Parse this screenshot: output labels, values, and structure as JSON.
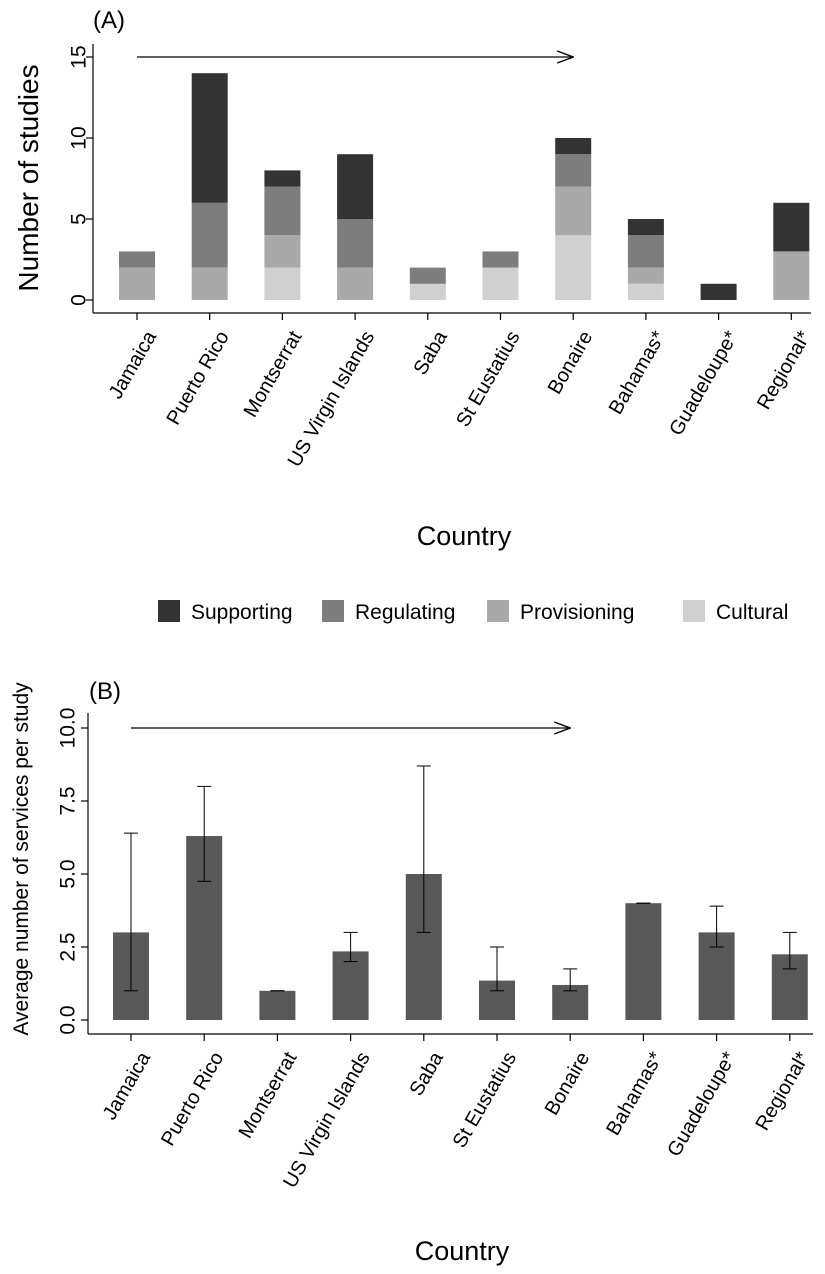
{
  "chart_data": [
    {
      "type": "bar",
      "stacked": true,
      "panel_label": "(A)",
      "xlabel": "Country",
      "ylabel": "Number of studies",
      "ylim": [
        0,
        15
      ],
      "yticks": [
        0,
        5,
        10,
        15
      ],
      "categories": [
        "Jamaica",
        "Puerto Rico",
        "Montserrat",
        "US Virgin Islands",
        "Saba",
        "St Eustatius",
        "Bonaire",
        "Bahamas*",
        "Guadeloupe*",
        "Regional*"
      ],
      "series": [
        {
          "name": "Cultural",
          "color": "#d0d0d0",
          "values": [
            0,
            0,
            2,
            0,
            1,
            2,
            4,
            1,
            0,
            0
          ]
        },
        {
          "name": "Provisioning",
          "color": "#a9a9a9",
          "values": [
            2,
            2,
            2,
            2,
            0,
            0,
            3,
            1,
            0,
            3
          ]
        },
        {
          "name": "Regulating",
          "color": "#7d7d7d",
          "values": [
            1,
            4,
            3,
            3,
            1,
            1,
            2,
            2,
            0,
            0
          ]
        },
        {
          "name": "Supporting",
          "color": "#333333",
          "values": [
            0,
            8,
            1,
            4,
            0,
            0,
            1,
            1,
            1,
            3
          ]
        }
      ],
      "arrow": {
        "from_category": "Jamaica",
        "to_category": "Bonaire",
        "y": 15
      },
      "grid": false,
      "legend_position": "bottom"
    },
    {
      "type": "bar",
      "panel_label": "(B)",
      "xlabel": "Country",
      "ylabel": "Average number of services per study",
      "ylim": [
        0,
        10.5
      ],
      "yticks": [
        "0.0",
        "2.5",
        "5.0",
        "7.5",
        "10.0"
      ],
      "categories": [
        "Jamaica",
        "Puerto Rico",
        "Montserrat",
        "US Virgin Islands",
        "Saba",
        "St Eustatius",
        "Bonaire",
        "Bahamas*",
        "Guadeloupe*",
        "Regional*"
      ],
      "bar_color": "#585858",
      "values": [
        3.0,
        6.3,
        1.0,
        2.35,
        5.0,
        1.35,
        1.2,
        4.0,
        3.0,
        2.25
      ],
      "error_low": [
        1.0,
        4.75,
        1.0,
        2.0,
        3.0,
        1.0,
        1.0,
        4.0,
        2.5,
        1.75
      ],
      "error_high": [
        6.4,
        8.0,
        1.0,
        3.0,
        8.7,
        2.5,
        1.75,
        4.0,
        3.9,
        3.0
      ],
      "arrow": {
        "from_category": "Jamaica",
        "to_category": "Bonaire",
        "y": 10.0
      },
      "grid": false
    }
  ],
  "legend": {
    "items": [
      {
        "label": "Supporting",
        "color": "#333333"
      },
      {
        "label": "Regulating",
        "color": "#7d7d7d"
      },
      {
        "label": "Provisioning",
        "color": "#a9a9a9"
      },
      {
        "label": "Cultural",
        "color": "#d0d0d0"
      }
    ]
  }
}
